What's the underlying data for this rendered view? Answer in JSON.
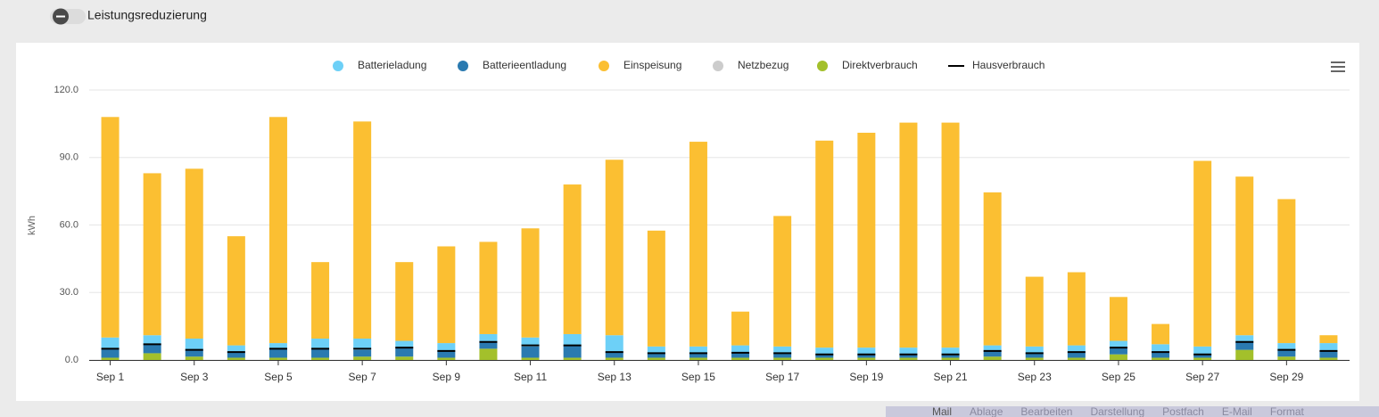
{
  "toggle_label": "Leistungsreduzierung",
  "menubar": [
    "Mail",
    "Ablage",
    "Bearbeiten",
    "Darstellung",
    "Postfach",
    "E-Mail",
    "Format"
  ],
  "chart_data": {
    "type": "bar",
    "stacked": true,
    "ylabel": "kWh",
    "categories": [
      "Sep 1",
      null,
      "Sep 3",
      null,
      "Sep 5",
      null,
      "Sep 7",
      null,
      "Sep 9",
      null,
      "Sep 11",
      null,
      "Sep 13",
      null,
      "Sep 15",
      null,
      "Sep 17",
      null,
      "Sep 19",
      null,
      "Sep 21",
      null,
      "Sep 23",
      null,
      "Sep 25",
      null,
      "Sep 27",
      null,
      "Sep 29",
      null
    ],
    "ylim": [
      0,
      120
    ],
    "yticks": [
      {
        "value": 0,
        "label": "0.0"
      },
      {
        "value": 30,
        "label": "30.0"
      },
      {
        "value": 60,
        "label": "60.0"
      },
      {
        "value": 90,
        "label": "90.0"
      },
      {
        "value": 120,
        "label": "120.0"
      }
    ],
    "grid": true,
    "legend": "top",
    "series": [
      {
        "name": "Batterieladung",
        "color": "#6dd0f7",
        "values": [
          5,
          4,
          5,
          3,
          2.5,
          4.5,
          5,
          3,
          3.5,
          3.5,
          4,
          5,
          7.5,
          3,
          3,
          3.5,
          3,
          3,
          3,
          3,
          3,
          2.5,
          3,
          3,
          3,
          3.5,
          3.5,
          3,
          3,
          3.5
        ]
      },
      {
        "name": "Batterieentladung",
        "color": "#2a7ab0",
        "values": [
          4,
          4,
          3,
          2.5,
          4,
          4,
          3,
          4,
          3,
          3,
          5,
          5.5,
          2.5,
          2,
          2,
          2,
          2,
          1.5,
          1.5,
          1.5,
          1.5,
          2.5,
          2,
          2.5,
          3,
          2.5,
          1.5,
          3.5,
          3,
          3
        ]
      },
      {
        "name": "Einspeisung",
        "color": "#fbbf32",
        "values": [
          98,
          72,
          75.5,
          48.5,
          100.5,
          34,
          96.5,
          35,
          43,
          41,
          48.5,
          66.5,
          78,
          51.5,
          91,
          15,
          58,
          92,
          95.5,
          100,
          100,
          68,
          31,
          32.5,
          19.5,
          9,
          82.5,
          70.5,
          64,
          3.5
        ]
      },
      {
        "name": "Netzbezug",
        "color": "#cccccc",
        "values": [
          0,
          0,
          0,
          0,
          0,
          0,
          0,
          0,
          0,
          0,
          0,
          0,
          0,
          0,
          0,
          0,
          0,
          0,
          0,
          0,
          0,
          0,
          0,
          0,
          0,
          0,
          0,
          0,
          0,
          0
        ]
      },
      {
        "name": "Direktverbrauch",
        "color": "#a3c02b",
        "values": [
          1,
          3,
          1.5,
          1,
          1,
          1,
          1.5,
          1.5,
          1,
          5,
          1,
          1,
          1,
          1,
          1,
          1,
          1,
          1,
          1,
          1,
          1,
          1.5,
          1,
          1,
          2.5,
          1,
          1,
          4.5,
          1.5,
          1
        ]
      },
      {
        "name": "Hausverbrauch",
        "color": "#000000",
        "marker": "dash",
        "values": [
          5,
          7,
          4.5,
          3.5,
          5,
          5,
          5,
          5.5,
          4,
          8,
          6.5,
          6.5,
          3.5,
          3,
          3,
          3.2,
          3,
          2.5,
          2.5,
          2.5,
          2.5,
          4,
          3,
          3.5,
          5.5,
          3.5,
          2.5,
          8,
          4.5,
          4
        ]
      }
    ]
  }
}
